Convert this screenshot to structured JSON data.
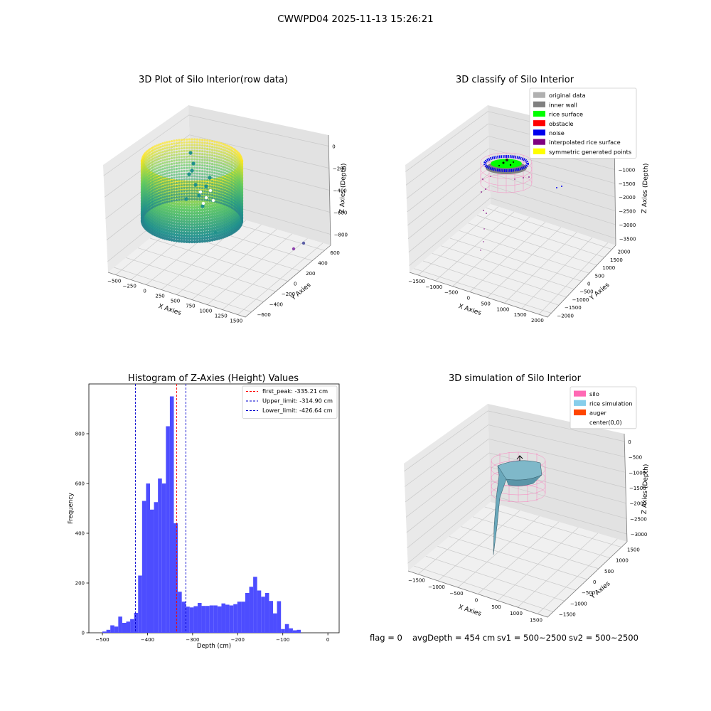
{
  "suptitle": "CWWPD04 2025-11-13 15:26:21",
  "footer": {
    "flag": "flag = 0",
    "avg": "avgDepth = 454 cm",
    "sv1": "sv1 = 500~2500",
    "sv2": "sv2 = 500~2500"
  },
  "colors": {
    "silo": "#ff69b4",
    "rice_simulation": "#87ceeb",
    "auger": "#ff4500",
    "histogram": "#4d4dff",
    "first_peak_line": "#ff0000",
    "limit_lines": "#0000cc"
  },
  "chart_data": [
    {
      "type": "scatter3d",
      "title": "3D Plot of Silo Interior(row data)",
      "xlabel": "X Axies",
      "ylabel": "Y Axies",
      "zlabel": "Z Axies (Depth)",
      "x_ticks": [
        "−500",
        "−250",
        "0",
        "250",
        "500",
        "750",
        "1000",
        "1250",
        "1500"
      ],
      "y_ticks": [
        "−600",
        "−400",
        "−200",
        "0",
        "200",
        "400",
        "600"
      ],
      "z_ticks": [
        "−800",
        "−600",
        "−400",
        "−200",
        "0"
      ],
      "colormap": "viridis"
    },
    {
      "type": "scatter3d",
      "title": "3D classify of Silo Interior",
      "xlabel": "X Axies",
      "ylabel": "Y Axies",
      "zlabel": "Z Axies (Depth)",
      "x_ticks": [
        "−1500",
        "−1000",
        "−500",
        "0",
        "500",
        "1000",
        "1500",
        "2000"
      ],
      "y_ticks": [
        "−2000",
        "−1500",
        "−1000",
        "−500",
        "0",
        "500",
        "1000",
        "1500",
        "2000"
      ],
      "z_ticks": [
        "−3500",
        "−3000",
        "−2500",
        "−2000",
        "−1500",
        "−1000",
        "−500",
        "0"
      ],
      "legend": [
        {
          "label": "original data",
          "color": "#b0b0b0"
        },
        {
          "label": "inner wall",
          "color": "#808080"
        },
        {
          "label": "rice surface",
          "color": "#00ff00"
        },
        {
          "label": "obstacle",
          "color": "#ff0000"
        },
        {
          "label": "noise",
          "color": "#0000ee"
        },
        {
          "label": "interpolated rice surface",
          "color": "#800080"
        },
        {
          "label": "symmetric generated points",
          "color": "#ffff00"
        }
      ],
      "legend_position": "top-right"
    },
    {
      "type": "bar",
      "title": "Histogram of Z-Axies (Height) Values",
      "xlabel": "Depth (cm)",
      "ylabel": "Frequency",
      "xlim": [
        -530,
        25
      ],
      "ylim": [
        0,
        1000
      ],
      "x_ticks": [
        -500,
        -400,
        -300,
        -200,
        -100,
        0
      ],
      "y_ticks": [
        0,
        200,
        400,
        600,
        800
      ],
      "bin_start": -500,
      "bin_width": 8.8,
      "values": [
        5,
        12,
        30,
        25,
        65,
        40,
        45,
        55,
        80,
        230,
        530,
        600,
        495,
        525,
        620,
        600,
        830,
        950,
        440,
        165,
        125,
        105,
        102,
        107,
        120,
        108,
        108,
        110,
        110,
        106,
        118,
        113,
        110,
        115,
        125,
        125,
        160,
        185,
        225,
        170,
        145,
        160,
        128,
        78,
        127,
        15,
        35,
        18,
        10,
        12
      ],
      "lines": [
        {
          "label": "first_peak: -335.21 cm",
          "x": -335.21,
          "color": "#ff0000"
        },
        {
          "label": "Upper_limit: -314.90 cm",
          "x": -314.9,
          "color": "#0000cc"
        },
        {
          "label": "Lower_limit: -426.64 cm",
          "x": -426.64,
          "color": "#0000cc"
        }
      ],
      "legend_position": "top-right"
    },
    {
      "type": "surface3d",
      "title": "3D simulation of Silo Interior",
      "xlabel": "X Axies",
      "ylabel": "Y Axies",
      "zlabel": "Z Axies (Depth)",
      "x_ticks": [
        "−1500",
        "−1000",
        "−500",
        "0",
        "500",
        "1000",
        "1500"
      ],
      "y_ticks": [
        "−1500",
        "−1000",
        "−500",
        "0",
        "500",
        "1000",
        "1500"
      ],
      "z_ticks": [
        "−3000",
        "−2500",
        "−2000",
        "−1500",
        "−1000",
        "−500",
        "0"
      ],
      "legend": [
        {
          "label": "silo",
          "color": "#ff69b4"
        },
        {
          "label": "rice simulation",
          "color": "#87ceeb"
        },
        {
          "label": "auger",
          "color": "#ff4500"
        },
        {
          "label": "center(0,0)",
          "color": "#ffffff"
        }
      ],
      "legend_position": "top-right"
    }
  ]
}
